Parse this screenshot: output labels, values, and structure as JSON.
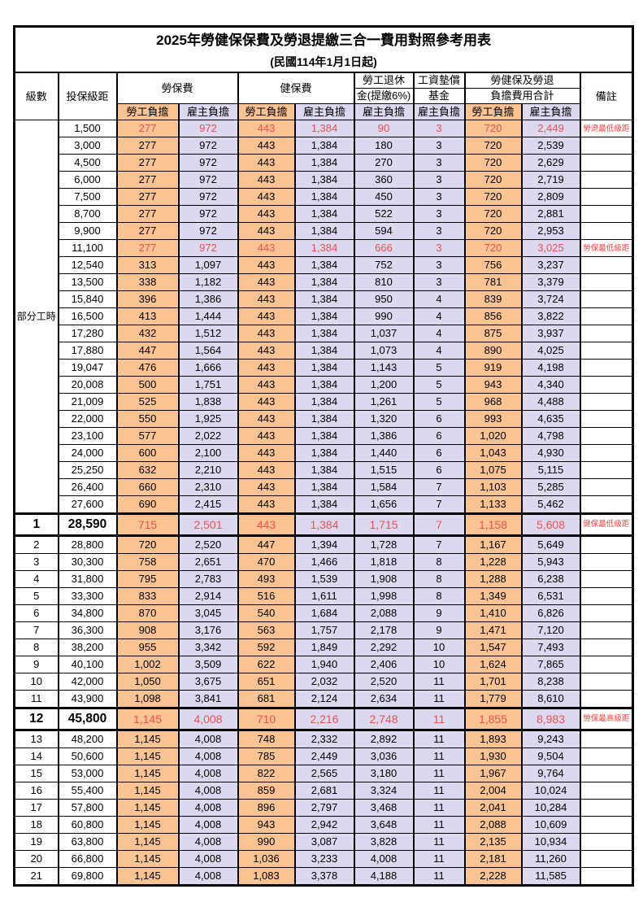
{
  "title": "2025年勞健保保費及勞退提繳三合一費用對照參考用表",
  "subtitle": "(民國114年1月1日起)",
  "colors": {
    "employee_col_bg": "#FAC394",
    "employer_col_bg": "#DBD8EF",
    "highlight_red": "#EA534F",
    "remark_red": "#FB4343",
    "border": "#000000"
  },
  "header": {
    "level": "級數",
    "bracket": "投保級距",
    "labor_ins": "勞保費",
    "health_ins": "健保費",
    "pension_line1": "勞工退休",
    "pension_line2": "金(提繳6%)",
    "wage_fund_line1": "工資墊償",
    "wage_fund_line2": "基金",
    "total_line1": "勞健保及勞退",
    "total_line2": "負擔費用合計",
    "remark": "備註",
    "employee": "勞工負擔",
    "employer": "雇主負擔"
  },
  "part_time_label": "部分工時",
  "rows": [
    {
      "level": "",
      "bracket": "1,500",
      "labor_emp": "277",
      "labor_er": "972",
      "health_emp": "443",
      "health_er": "1,384",
      "pension": "90",
      "wage_fund": "3",
      "total_emp": "720",
      "total_er": "2,449",
      "remark": "勞退最低級距",
      "red": true,
      "em": false
    },
    {
      "level": "",
      "bracket": "3,000",
      "labor_emp": "277",
      "labor_er": "972",
      "health_emp": "443",
      "health_er": "1,384",
      "pension": "180",
      "wage_fund": "3",
      "total_emp": "720",
      "total_er": "2,539",
      "remark": "",
      "red": false,
      "em": false
    },
    {
      "level": "",
      "bracket": "4,500",
      "labor_emp": "277",
      "labor_er": "972",
      "health_emp": "443",
      "health_er": "1,384",
      "pension": "270",
      "wage_fund": "3",
      "total_emp": "720",
      "total_er": "2,629",
      "remark": "",
      "red": false,
      "em": false
    },
    {
      "level": "",
      "bracket": "6,000",
      "labor_emp": "277",
      "labor_er": "972",
      "health_emp": "443",
      "health_er": "1,384",
      "pension": "360",
      "wage_fund": "3",
      "total_emp": "720",
      "total_er": "2,719",
      "remark": "",
      "red": false,
      "em": false
    },
    {
      "level": "",
      "bracket": "7,500",
      "labor_emp": "277",
      "labor_er": "972",
      "health_emp": "443",
      "health_er": "1,384",
      "pension": "450",
      "wage_fund": "3",
      "total_emp": "720",
      "total_er": "2,809",
      "remark": "",
      "red": false,
      "em": false
    },
    {
      "level": "",
      "bracket": "8,700",
      "labor_emp": "277",
      "labor_er": "972",
      "health_emp": "443",
      "health_er": "1,384",
      "pension": "522",
      "wage_fund": "3",
      "total_emp": "720",
      "total_er": "2,881",
      "remark": "",
      "red": false,
      "em": false
    },
    {
      "level": "",
      "bracket": "9,900",
      "labor_emp": "277",
      "labor_er": "972",
      "health_emp": "443",
      "health_er": "1,384",
      "pension": "594",
      "wage_fund": "3",
      "total_emp": "720",
      "total_er": "2,953",
      "remark": "",
      "red": false,
      "em": false
    },
    {
      "level": "",
      "bracket": "11,100",
      "labor_emp": "277",
      "labor_er": "972",
      "health_emp": "443",
      "health_er": "1,384",
      "pension": "666",
      "wage_fund": "3",
      "total_emp": "720",
      "total_er": "3,025",
      "remark": "勞保最低級距",
      "red": true,
      "em": false
    },
    {
      "level": "",
      "bracket": "12,540",
      "labor_emp": "313",
      "labor_er": "1,097",
      "health_emp": "443",
      "health_er": "1,384",
      "pension": "752",
      "wage_fund": "3",
      "total_emp": "756",
      "total_er": "3,237",
      "remark": "",
      "red": false,
      "em": false
    },
    {
      "level": "",
      "bracket": "13,500",
      "labor_emp": "338",
      "labor_er": "1,182",
      "health_emp": "443",
      "health_er": "1,384",
      "pension": "810",
      "wage_fund": "3",
      "total_emp": "781",
      "total_er": "3,379",
      "remark": "",
      "red": false,
      "em": false
    },
    {
      "level": "",
      "bracket": "15,840",
      "labor_emp": "396",
      "labor_er": "1,386",
      "health_emp": "443",
      "health_er": "1,384",
      "pension": "950",
      "wage_fund": "4",
      "total_emp": "839",
      "total_er": "3,724",
      "remark": "",
      "red": false,
      "em": false
    },
    {
      "level": "",
      "bracket": "16,500",
      "labor_emp": "413",
      "labor_er": "1,444",
      "health_emp": "443",
      "health_er": "1,384",
      "pension": "990",
      "wage_fund": "4",
      "total_emp": "856",
      "total_er": "3,822",
      "remark": "",
      "red": false,
      "em": false
    },
    {
      "level": "",
      "bracket": "17,280",
      "labor_emp": "432",
      "labor_er": "1,512",
      "health_emp": "443",
      "health_er": "1,384",
      "pension": "1,037",
      "wage_fund": "4",
      "total_emp": "875",
      "total_er": "3,937",
      "remark": "",
      "red": false,
      "em": false
    },
    {
      "level": "",
      "bracket": "17,880",
      "labor_emp": "447",
      "labor_er": "1,564",
      "health_emp": "443",
      "health_er": "1,384",
      "pension": "1,073",
      "wage_fund": "4",
      "total_emp": "890",
      "total_er": "4,025",
      "remark": "",
      "red": false,
      "em": false
    },
    {
      "level": "",
      "bracket": "19,047",
      "labor_emp": "476",
      "labor_er": "1,666",
      "health_emp": "443",
      "health_er": "1,384",
      "pension": "1,143",
      "wage_fund": "5",
      "total_emp": "919",
      "total_er": "4,198",
      "remark": "",
      "red": false,
      "em": false
    },
    {
      "level": "",
      "bracket": "20,008",
      "labor_emp": "500",
      "labor_er": "1,751",
      "health_emp": "443",
      "health_er": "1,384",
      "pension": "1,200",
      "wage_fund": "5",
      "total_emp": "943",
      "total_er": "4,340",
      "remark": "",
      "red": false,
      "em": false
    },
    {
      "level": "",
      "bracket": "21,009",
      "labor_emp": "525",
      "labor_er": "1,838",
      "health_emp": "443",
      "health_er": "1,384",
      "pension": "1,261",
      "wage_fund": "5",
      "total_emp": "968",
      "total_er": "4,488",
      "remark": "",
      "red": false,
      "em": false
    },
    {
      "level": "",
      "bracket": "22,000",
      "labor_emp": "550",
      "labor_er": "1,925",
      "health_emp": "443",
      "health_er": "1,384",
      "pension": "1,320",
      "wage_fund": "6",
      "total_emp": "993",
      "total_er": "4,635",
      "remark": "",
      "red": false,
      "em": false
    },
    {
      "level": "",
      "bracket": "23,100",
      "labor_emp": "577",
      "labor_er": "2,022",
      "health_emp": "443",
      "health_er": "1,384",
      "pension": "1,386",
      "wage_fund": "6",
      "total_emp": "1,020",
      "total_er": "4,798",
      "remark": "",
      "red": false,
      "em": false
    },
    {
      "level": "",
      "bracket": "24,000",
      "labor_emp": "600",
      "labor_er": "2,100",
      "health_emp": "443",
      "health_er": "1,384",
      "pension": "1,440",
      "wage_fund": "6",
      "total_emp": "1,043",
      "total_er": "4,930",
      "remark": "",
      "red": false,
      "em": false
    },
    {
      "level": "",
      "bracket": "25,250",
      "labor_emp": "632",
      "labor_er": "2,210",
      "health_emp": "443",
      "health_er": "1,384",
      "pension": "1,515",
      "wage_fund": "6",
      "total_emp": "1,075",
      "total_er": "5,115",
      "remark": "",
      "red": false,
      "em": false
    },
    {
      "level": "",
      "bracket": "26,400",
      "labor_emp": "660",
      "labor_er": "2,310",
      "health_emp": "443",
      "health_er": "1,384",
      "pension": "1,584",
      "wage_fund": "7",
      "total_emp": "1,103",
      "total_er": "5,285",
      "remark": "",
      "red": false,
      "em": false
    },
    {
      "level": "",
      "bracket": "27,600",
      "labor_emp": "690",
      "labor_er": "2,415",
      "health_emp": "443",
      "health_er": "1,384",
      "pension": "1,656",
      "wage_fund": "7",
      "total_emp": "1,133",
      "total_er": "5,462",
      "remark": "",
      "red": false,
      "em": false
    },
    {
      "level": "1",
      "bracket": "28,590",
      "labor_emp": "715",
      "labor_er": "2,501",
      "health_emp": "443",
      "health_er": "1,384",
      "pension": "1,715",
      "wage_fund": "7",
      "total_emp": "1,158",
      "total_er": "5,608",
      "remark": "健保最低級距",
      "red": true,
      "em": true
    },
    {
      "level": "2",
      "bracket": "28,800",
      "labor_emp": "720",
      "labor_er": "2,520",
      "health_emp": "447",
      "health_er": "1,394",
      "pension": "1,728",
      "wage_fund": "7",
      "total_emp": "1,167",
      "total_er": "5,649",
      "remark": "",
      "red": false,
      "em": false
    },
    {
      "level": "3",
      "bracket": "30,300",
      "labor_emp": "758",
      "labor_er": "2,651",
      "health_emp": "470",
      "health_er": "1,466",
      "pension": "1,818",
      "wage_fund": "8",
      "total_emp": "1,228",
      "total_er": "5,943",
      "remark": "",
      "red": false,
      "em": false
    },
    {
      "level": "4",
      "bracket": "31,800",
      "labor_emp": "795",
      "labor_er": "2,783",
      "health_emp": "493",
      "health_er": "1,539",
      "pension": "1,908",
      "wage_fund": "8",
      "total_emp": "1,288",
      "total_er": "6,238",
      "remark": "",
      "red": false,
      "em": false
    },
    {
      "level": "5",
      "bracket": "33,300",
      "labor_emp": "833",
      "labor_er": "2,914",
      "health_emp": "516",
      "health_er": "1,611",
      "pension": "1,998",
      "wage_fund": "8",
      "total_emp": "1,349",
      "total_er": "6,531",
      "remark": "",
      "red": false,
      "em": false
    },
    {
      "level": "6",
      "bracket": "34,800",
      "labor_emp": "870",
      "labor_er": "3,045",
      "health_emp": "540",
      "health_er": "1,684",
      "pension": "2,088",
      "wage_fund": "9",
      "total_emp": "1,410",
      "total_er": "6,826",
      "remark": "",
      "red": false,
      "em": false
    },
    {
      "level": "7",
      "bracket": "36,300",
      "labor_emp": "908",
      "labor_er": "3,176",
      "health_emp": "563",
      "health_er": "1,757",
      "pension": "2,178",
      "wage_fund": "9",
      "total_emp": "1,471",
      "total_er": "7,120",
      "remark": "",
      "red": false,
      "em": false
    },
    {
      "level": "8",
      "bracket": "38,200",
      "labor_emp": "955",
      "labor_er": "3,342",
      "health_emp": "592",
      "health_er": "1,849",
      "pension": "2,292",
      "wage_fund": "10",
      "total_emp": "1,547",
      "total_er": "7,493",
      "remark": "",
      "red": false,
      "em": false
    },
    {
      "level": "9",
      "bracket": "40,100",
      "labor_emp": "1,002",
      "labor_er": "3,509",
      "health_emp": "622",
      "health_er": "1,940",
      "pension": "2,406",
      "wage_fund": "10",
      "total_emp": "1,624",
      "total_er": "7,865",
      "remark": "",
      "red": false,
      "em": false
    },
    {
      "level": "10",
      "bracket": "42,000",
      "labor_emp": "1,050",
      "labor_er": "3,675",
      "health_emp": "651",
      "health_er": "2,032",
      "pension": "2,520",
      "wage_fund": "11",
      "total_emp": "1,701",
      "total_er": "8,238",
      "remark": "",
      "red": false,
      "em": false
    },
    {
      "level": "11",
      "bracket": "43,900",
      "labor_emp": "1,098",
      "labor_er": "3,841",
      "health_emp": "681",
      "health_er": "2,124",
      "pension": "2,634",
      "wage_fund": "11",
      "total_emp": "1,779",
      "total_er": "8,610",
      "remark": "",
      "red": false,
      "em": false
    },
    {
      "level": "12",
      "bracket": "45,800",
      "labor_emp": "1,145",
      "labor_er": "4,008",
      "health_emp": "710",
      "health_er": "2,216",
      "pension": "2,748",
      "wage_fund": "11",
      "total_emp": "1,855",
      "total_er": "8,983",
      "remark": "勞保最高級距",
      "red": true,
      "em": true
    },
    {
      "level": "13",
      "bracket": "48,200",
      "labor_emp": "1,145",
      "labor_er": "4,008",
      "health_emp": "748",
      "health_er": "2,332",
      "pension": "2,892",
      "wage_fund": "11",
      "total_emp": "1,893",
      "total_er": "9,243",
      "remark": "",
      "red": false,
      "em": false
    },
    {
      "level": "14",
      "bracket": "50,600",
      "labor_emp": "1,145",
      "labor_er": "4,008",
      "health_emp": "785",
      "health_er": "2,449",
      "pension": "3,036",
      "wage_fund": "11",
      "total_emp": "1,930",
      "total_er": "9,504",
      "remark": "",
      "red": false,
      "em": false
    },
    {
      "level": "15",
      "bracket": "53,000",
      "labor_emp": "1,145",
      "labor_er": "4,008",
      "health_emp": "822",
      "health_er": "2,565",
      "pension": "3,180",
      "wage_fund": "11",
      "total_emp": "1,967",
      "total_er": "9,764",
      "remark": "",
      "red": false,
      "em": false
    },
    {
      "level": "16",
      "bracket": "55,400",
      "labor_emp": "1,145",
      "labor_er": "4,008",
      "health_emp": "859",
      "health_er": "2,681",
      "pension": "3,324",
      "wage_fund": "11",
      "total_emp": "2,004",
      "total_er": "10,024",
      "remark": "",
      "red": false,
      "em": false
    },
    {
      "level": "17",
      "bracket": "57,800",
      "labor_emp": "1,145",
      "labor_er": "4,008",
      "health_emp": "896",
      "health_er": "2,797",
      "pension": "3,468",
      "wage_fund": "11",
      "total_emp": "2,041",
      "total_er": "10,284",
      "remark": "",
      "red": false,
      "em": false
    },
    {
      "level": "18",
      "bracket": "60,800",
      "labor_emp": "1,145",
      "labor_er": "4,008",
      "health_emp": "943",
      "health_er": "2,942",
      "pension": "3,648",
      "wage_fund": "11",
      "total_emp": "2,088",
      "total_er": "10,609",
      "remark": "",
      "red": false,
      "em": false
    },
    {
      "level": "19",
      "bracket": "63,800",
      "labor_emp": "1,145",
      "labor_er": "4,008",
      "health_emp": "990",
      "health_er": "3,087",
      "pension": "3,828",
      "wage_fund": "11",
      "total_emp": "2,135",
      "total_er": "10,934",
      "remark": "",
      "red": false,
      "em": false
    },
    {
      "level": "20",
      "bracket": "66,800",
      "labor_emp": "1,145",
      "labor_er": "4,008",
      "health_emp": "1,036",
      "health_er": "3,233",
      "pension": "4,008",
      "wage_fund": "11",
      "total_emp": "2,181",
      "total_er": "11,260",
      "remark": "",
      "red": false,
      "em": false
    },
    {
      "level": "21",
      "bracket": "69,800",
      "labor_emp": "1,145",
      "labor_er": "4,008",
      "health_emp": "1,083",
      "health_er": "3,378",
      "pension": "4,188",
      "wage_fund": "11",
      "total_emp": "2,228",
      "total_er": "11,585",
      "remark": "",
      "red": false,
      "em": false
    }
  ]
}
